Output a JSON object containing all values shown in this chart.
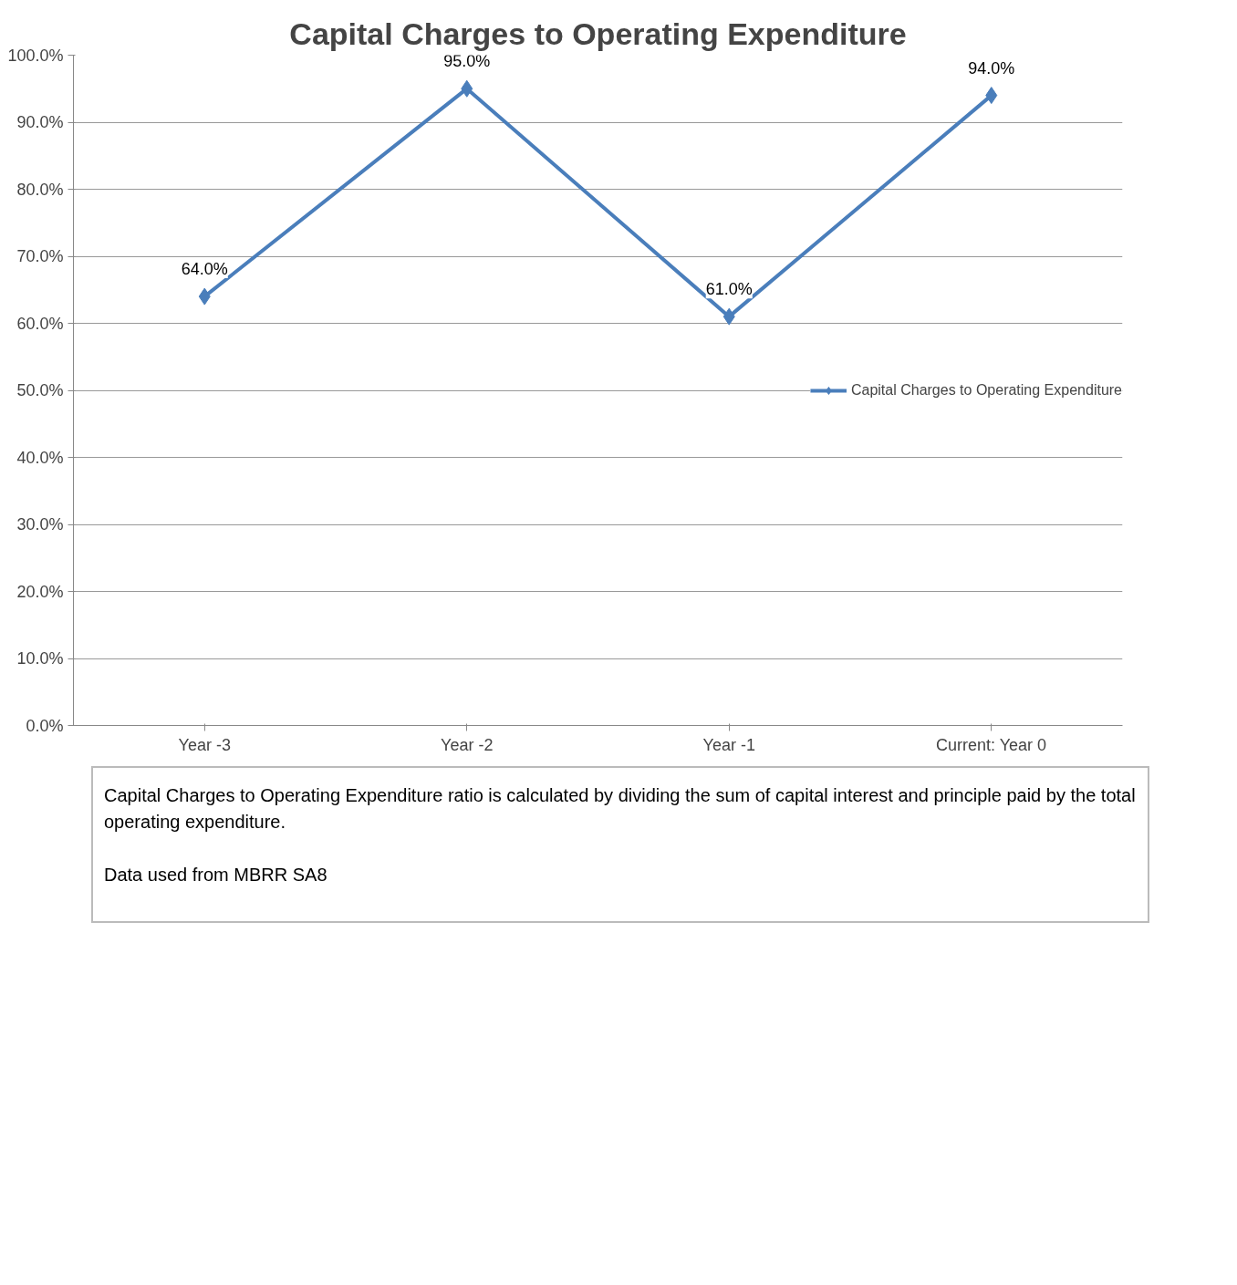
{
  "chart_data": {
    "type": "line",
    "title": "Capital Charges to Operating Expenditure",
    "categories": [
      "Year -3",
      "Year -2",
      "Year -1",
      "Current: Year 0"
    ],
    "series": [
      {
        "name": "Capital Charges to Operating Expenditure",
        "color": "#4a7ebb",
        "values": [
          64,
          95,
          61,
          94
        ],
        "value_labels": [
          "64.0%",
          "95.0%",
          "61.0%",
          "94.0%"
        ]
      }
    ],
    "ylim": [
      0,
      100
    ],
    "yticks": [
      {
        "value": 0,
        "label": "0.0%"
      },
      {
        "value": 10,
        "label": "10.0%"
      },
      {
        "value": 20,
        "label": "20.0%"
      },
      {
        "value": 30,
        "label": "30.0%"
      },
      {
        "value": 40,
        "label": "40.0%"
      },
      {
        "value": 50,
        "label": "50.0%"
      },
      {
        "value": 60,
        "label": "60.0%"
      },
      {
        "value": 70,
        "label": "70.0%"
      },
      {
        "value": 80,
        "label": "80.0%"
      },
      {
        "value": 90,
        "label": "90.0%"
      },
      {
        "value": 100,
        "label": "100.0%"
      }
    ],
    "grid": "y",
    "legend": "right",
    "marker": "diamond",
    "line_style": "solid",
    "annotations": [
      "Capital Charges to Operating Expenditure ratio is calculated by dividing the sum of capital interest and principle paid by the total operating expenditure.",
      "Data used from MBRR SA8"
    ]
  }
}
